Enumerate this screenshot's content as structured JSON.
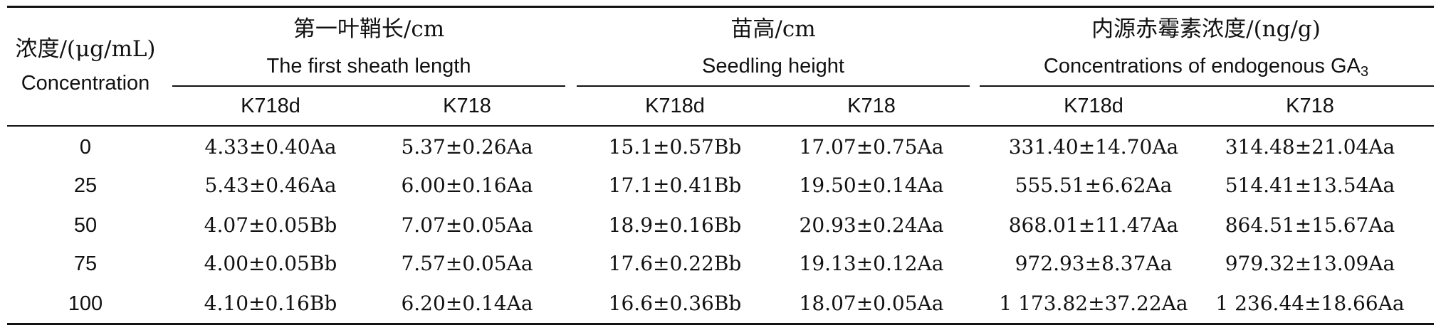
{
  "table": {
    "row_header": {
      "cn": "浓度/(μg/mL)",
      "en": "Concentration"
    },
    "groups": [
      {
        "cn": "第一叶鞘长/cm",
        "en": "The first sheath length"
      },
      {
        "cn": "苗高/cm",
        "en": "Seedling height"
      },
      {
        "cn": "内源赤霉素浓度/(ng/g)",
        "en": "Concentrations of endogenous GA",
        "en_sub": "3"
      }
    ],
    "subheaders": [
      "K718d",
      "K718",
      "K718d",
      "K718",
      "K718d",
      "K718"
    ],
    "rows": [
      {
        "conc": "0",
        "cells": [
          "4.33±0.40Aa",
          "5.37±0.26Aa",
          "15.1±0.57Bb",
          "17.07±0.75Aa",
          "331.40±14.70Aa",
          "314.48±21.04Aa"
        ]
      },
      {
        "conc": "25",
        "cells": [
          "5.43±0.46Aa",
          "6.00±0.16Aa",
          "17.1±0.41Bb",
          "19.50±0.14Aa",
          "555.51±6.62Aa",
          "514.41±13.54Aa"
        ]
      },
      {
        "conc": "50",
        "cells": [
          "4.07±0.05Bb",
          "7.07±0.05Aa",
          "18.9±0.16Bb",
          "20.93±0.24Aa",
          "868.01±11.47Aa",
          "864.51±15.67Aa"
        ]
      },
      {
        "conc": "75",
        "cells": [
          "4.00±0.05Bb",
          "7.57±0.05Aa",
          "17.6±0.22Bb",
          "19.13±0.12Aa",
          "972.93±8.37Aa",
          "979.32±13.09Aa"
        ]
      },
      {
        "conc": "100",
        "cells": [
          "4.10±0.16Bb",
          "6.20±0.14Aa",
          "16.6±0.36Bb",
          "18.07±0.05Aa",
          "1 173.82±37.22Aa",
          "1 236.44±18.66Aa"
        ]
      }
    ]
  }
}
